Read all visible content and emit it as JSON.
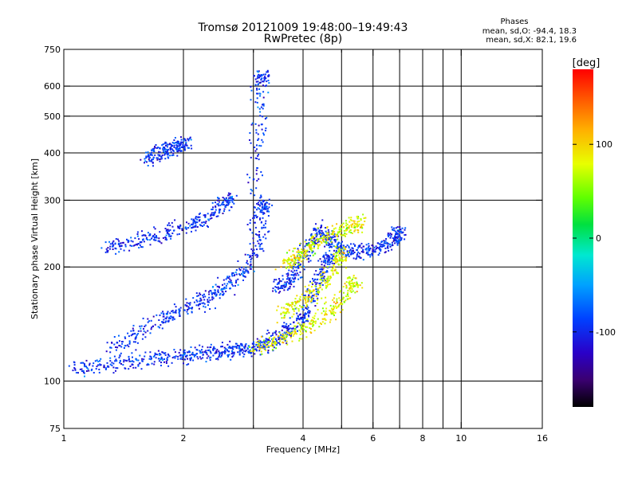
{
  "chart_data": {
    "type": "scatter",
    "title": "Tromsø 20121009 19:48:00–19:49:43",
    "subtitle": "RwPretec (8p)",
    "xlabel": "Frequency [MHz]",
    "ylabel": "Stationary phase Virtual Height [km]",
    "x_scale": "log",
    "y_scale": "log",
    "xlim": [
      1,
      16
    ],
    "ylim": [
      75,
      750
    ],
    "grid": true,
    "x_ticks": [
      1,
      2,
      3,
      4,
      5,
      6,
      7,
      8,
      9,
      10,
      16
    ],
    "x_tick_labels": [
      "1",
      "2",
      "4",
      "6",
      "8",
      "10",
      "16"
    ],
    "y_ticks": [
      75,
      100,
      200,
      300,
      400,
      500,
      600,
      750
    ],
    "y_tick_labels": [
      "75",
      "100",
      "200",
      "300",
      "400",
      "500",
      "600",
      "750"
    ],
    "stats_title": "Phases",
    "stats_lines": [
      "mean, sd,O: -94.4, 18.3",
      "mean, sd,X:  82.1, 19.6"
    ],
    "colorbar": {
      "label": "[deg]",
      "range": [
        -180,
        180
      ],
      "ticks": [
        -100,
        0,
        100
      ],
      "tick_labels": [
        "-100",
        "0",
        "100"
      ]
    },
    "series": [
      {
        "name": "O",
        "phase_mean": -94.4,
        "phase_sd": 18.3,
        "x": [
          1.05,
          1.2,
          1.4,
          1.6,
          1.8,
          2.0,
          2.2,
          2.4,
          2.6,
          2.8,
          3.0,
          3.2,
          3.4,
          3.6,
          3.8,
          4.0,
          4.2,
          4.4,
          4.6
        ],
        "y": [
          108,
          109,
          112,
          114,
          116,
          117,
          118,
          119,
          120,
          121,
          122,
          124,
          128,
          134,
          140,
          150,
          165,
          185,
          210
        ]
      },
      {
        "name": "O",
        "phase_mean": -94.4,
        "phase_sd": 18.3,
        "x": [
          1.3,
          1.5,
          1.7,
          1.9,
          2.1,
          2.3,
          2.5,
          2.7,
          2.9,
          3.1,
          3.2
        ],
        "y": [
          120,
          132,
          142,
          150,
          158,
          166,
          175,
          185,
          200,
          230,
          290
        ]
      },
      {
        "name": "O",
        "phase_mean": -94.4,
        "phase_sd": 18.3,
        "x": [
          1.3,
          1.4,
          1.6,
          1.8,
          2.0,
          2.2,
          2.4,
          2.6
        ],
        "y": [
          225,
          228,
          235,
          245,
          255,
          265,
          280,
          300
        ]
      },
      {
        "name": "O",
        "phase_mean": -94.4,
        "phase_sd": 18.3,
        "x": [
          1.6,
          1.7,
          1.8,
          1.9,
          2.0
        ],
        "y": [
          380,
          395,
          405,
          412,
          420
        ]
      },
      {
        "name": "O",
        "phase_mean": -94.4,
        "phase_sd": 18.3,
        "x": [
          3.0,
          3.05,
          3.1,
          3.15
        ],
        "y": [
          250,
          350,
          500,
          630
        ]
      },
      {
        "name": "O",
        "phase_mean": -94.4,
        "phase_sd": 18.3,
        "x": [
          3.4,
          3.6,
          3.8,
          4.0,
          4.2,
          4.4,
          4.6,
          4.8,
          5.0,
          5.4,
          5.8,
          6.2,
          6.6,
          7.0
        ],
        "y": [
          175,
          180,
          190,
          210,
          230,
          250,
          240,
          230,
          222,
          220,
          220,
          224,
          232,
          245
        ]
      },
      {
        "name": "X",
        "phase_mean": 82.1,
        "phase_sd": 19.6,
        "x": [
          3.0,
          3.4,
          3.8,
          4.2,
          4.6,
          5.0,
          5.3
        ],
        "y": [
          122,
          126,
          133,
          142,
          150,
          162,
          180
        ]
      },
      {
        "name": "X",
        "phase_mean": 82.1,
        "phase_sd": 19.6,
        "x": [
          3.5,
          3.8,
          4.1,
          4.4,
          4.7,
          5.0
        ],
        "y": [
          150,
          158,
          165,
          175,
          190,
          215
        ]
      },
      {
        "name": "X",
        "phase_mean": 82.1,
        "phase_sd": 19.6,
        "x": [
          3.6,
          3.8,
          4.0,
          4.2,
          4.6,
          5.0,
          5.5
        ],
        "y": [
          205,
          210,
          218,
          230,
          240,
          250,
          260
        ]
      }
    ]
  }
}
